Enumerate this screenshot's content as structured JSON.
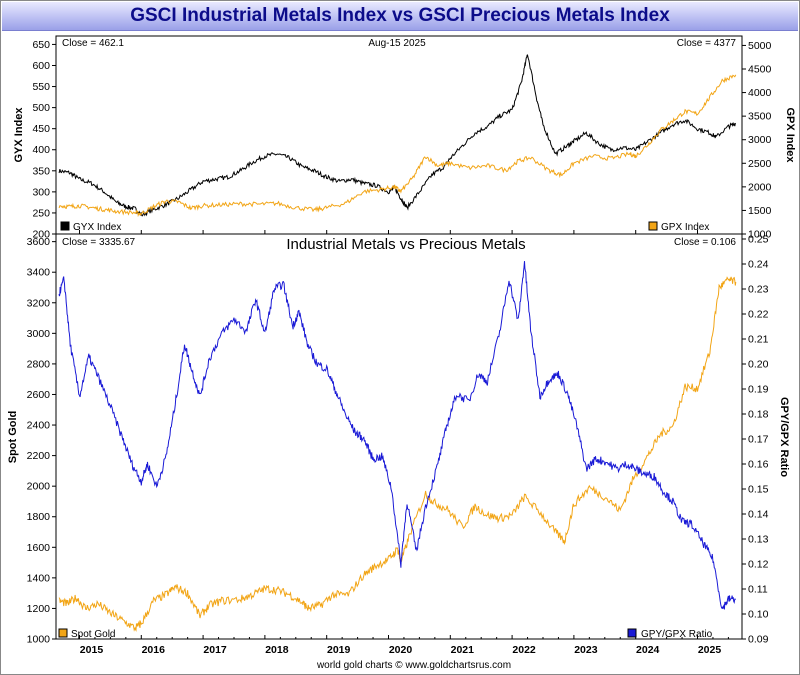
{
  "header": {
    "title": "GSCI Industrial Metals Index vs GSCI Precious Metals Index"
  },
  "footer": {
    "credit": "world gold charts © www.goldchartsrus.com"
  },
  "chart_data": [
    {
      "type": "line",
      "panel": "top",
      "title": "",
      "close_left": "Close = 462.1",
      "date_label": "Aug-15  2025",
      "close_right": "Close = 4377",
      "ylabel_left": "GYX Index",
      "ylabel_right": "GPX Index",
      "ylim_left": [
        200,
        670
      ],
      "ylim_right": [
        1000,
        5200
      ],
      "yticks_left": [
        200,
        250,
        300,
        350,
        400,
        450,
        500,
        550,
        600,
        650
      ],
      "yticks_right": [
        1000,
        1500,
        2000,
        2500,
        3000,
        3500,
        4000,
        4500,
        5000
      ],
      "legend": [
        {
          "label": "GYX Index",
          "color": "#000000",
          "position": "bottom-left"
        },
        {
          "label": "GPX Index",
          "color": "#f2a516",
          "position": "bottom-right"
        }
      ],
      "grid": false,
      "series": [
        {
          "name": "GYX Index",
          "axis": "left",
          "color": "#000000",
          "x": [
            2014.67,
            2014.85,
            2015.0,
            2015.2,
            2015.4,
            2015.6,
            2015.75,
            2015.9,
            2016.0,
            2016.2,
            2016.4,
            2016.6,
            2016.8,
            2017.0,
            2017.2,
            2017.4,
            2017.6,
            2017.8,
            2018.0,
            2018.2,
            2018.4,
            2018.6,
            2018.8,
            2019.0,
            2019.2,
            2019.4,
            2019.6,
            2019.8,
            2020.0,
            2020.1,
            2020.2,
            2020.3,
            2020.5,
            2020.7,
            2020.9,
            2021.0,
            2021.2,
            2021.4,
            2021.6,
            2021.8,
            2022.0,
            2022.15,
            2022.25,
            2022.4,
            2022.5,
            2022.7,
            2022.9,
            2023.0,
            2023.2,
            2023.4,
            2023.6,
            2023.8,
            2024.0,
            2024.2,
            2024.4,
            2024.6,
            2024.8,
            2025.0,
            2025.2,
            2025.3,
            2025.5,
            2025.62
          ],
          "y": [
            350,
            345,
            330,
            320,
            300,
            275,
            265,
            260,
            245,
            258,
            270,
            285,
            305,
            325,
            330,
            335,
            350,
            370,
            385,
            390,
            380,
            360,
            350,
            335,
            325,
            330,
            320,
            315,
            300,
            310,
            285,
            262,
            300,
            340,
            360,
            380,
            410,
            440,
            455,
            480,
            495,
            560,
            628,
            520,
            460,
            390,
            410,
            420,
            440,
            415,
            400,
            405,
            400,
            420,
            440,
            460,
            470,
            450,
            440,
            430,
            455,
            462.1
          ]
        },
        {
          "name": "GPX Index",
          "axis": "right",
          "color": "#f2a516",
          "x": [
            2014.67,
            2014.85,
            2015.0,
            2015.2,
            2015.4,
            2015.6,
            2015.9,
            2016.0,
            2016.2,
            2016.4,
            2016.6,
            2016.8,
            2017.0,
            2017.3,
            2017.6,
            2017.9,
            2018.2,
            2018.5,
            2018.8,
            2019.0,
            2019.3,
            2019.6,
            2019.9,
            2020.1,
            2020.2,
            2020.4,
            2020.6,
            2020.8,
            2021.0,
            2021.3,
            2021.6,
            2021.9,
            2022.1,
            2022.3,
            2022.6,
            2022.8,
            2023.0,
            2023.3,
            2023.6,
            2023.9,
            2024.0,
            2024.2,
            2024.4,
            2024.6,
            2024.8,
            2025.0,
            2025.2,
            2025.4,
            2025.62
          ],
          "y": [
            1600,
            1580,
            1600,
            1560,
            1520,
            1480,
            1450,
            1430,
            1580,
            1700,
            1680,
            1550,
            1600,
            1620,
            1640,
            1630,
            1650,
            1560,
            1510,
            1560,
            1650,
            1900,
            1950,
            2000,
            1900,
            2200,
            2650,
            2450,
            2500,
            2400,
            2450,
            2350,
            2550,
            2620,
            2350,
            2250,
            2500,
            2650,
            2600,
            2700,
            2650,
            2900,
            3200,
            3400,
            3600,
            3550,
            3900,
            4250,
            4377
          ]
        }
      ]
    },
    {
      "type": "line",
      "panel": "bottom",
      "title": "Industrial Metals vs Precious Metals",
      "close_left": "Close = 3335.67",
      "close_right": "Close = 0.106",
      "ylabel_left": "Spot Gold",
      "ylabel_right": "GPY/GPX Ratio",
      "ylim_left": [
        1000,
        3650
      ],
      "ylim_right": [
        0.09,
        0.252
      ],
      "yticks_left": [
        1000,
        1200,
        1400,
        1600,
        1800,
        2000,
        2200,
        2400,
        2600,
        2800,
        3000,
        3200,
        3400,
        3600
      ],
      "yticks_right": [
        0.09,
        0.1,
        0.11,
        0.12,
        0.13,
        0.14,
        0.15,
        0.16,
        0.17,
        0.18,
        0.19,
        0.2,
        0.21,
        0.22,
        0.23,
        0.24,
        0.25
      ],
      "xticks": [
        "2015",
        "2016",
        "2017",
        "2018",
        "2019",
        "2020",
        "2021",
        "2022",
        "2023",
        "2024",
        "2025"
      ],
      "xlim": [
        2014.62,
        2025.72
      ],
      "legend": [
        {
          "label": "Spot Gold",
          "color": "#f2a516",
          "position": "bottom-left"
        },
        {
          "label": "GPY/GPX Ratio",
          "color": "#1a1ad6",
          "position": "bottom-right"
        }
      ],
      "grid": false,
      "series": [
        {
          "name": "Spot Gold",
          "axis": "left",
          "color": "#f2a516",
          "x": [
            2014.67,
            2014.8,
            2014.95,
            2015.1,
            2015.3,
            2015.5,
            2015.7,
            2015.9,
            2016.0,
            2016.2,
            2016.4,
            2016.55,
            2016.75,
            2016.95,
            2017.1,
            2017.3,
            2017.6,
            2017.8,
            2018.0,
            2018.2,
            2018.4,
            2018.6,
            2018.7,
            2018.9,
            2019.1,
            2019.35,
            2019.6,
            2019.8,
            2020.0,
            2020.15,
            2020.2,
            2020.35,
            2020.6,
            2020.75,
            2020.95,
            2021.2,
            2021.4,
            2021.6,
            2021.8,
            2022.0,
            2022.2,
            2022.45,
            2022.7,
            2022.85,
            2023.0,
            2023.25,
            2023.5,
            2023.75,
            2023.95,
            2024.2,
            2024.4,
            2024.6,
            2024.8,
            2025.0,
            2025.2,
            2025.35,
            2025.5,
            2025.62
          ],
          "y": [
            1250,
            1230,
            1270,
            1200,
            1230,
            1170,
            1120,
            1070,
            1100,
            1250,
            1290,
            1340,
            1300,
            1150,
            1220,
            1250,
            1260,
            1290,
            1330,
            1320,
            1290,
            1240,
            1200,
            1220,
            1290,
            1290,
            1420,
            1480,
            1520,
            1590,
            1500,
            1690,
            1950,
            1890,
            1850,
            1730,
            1870,
            1810,
            1790,
            1810,
            1930,
            1830,
            1700,
            1640,
            1880,
            1990,
            1930,
            1840,
            2040,
            2200,
            2340,
            2390,
            2650,
            2640,
            2880,
            3300,
            3350,
            3335.67
          ]
        },
        {
          "name": "GPY/GPX Ratio",
          "axis": "right",
          "color": "#1a1ad6",
          "x": [
            2014.67,
            2014.75,
            2014.85,
            2015.0,
            2015.15,
            2015.3,
            2015.5,
            2015.7,
            2015.85,
            2016.0,
            2016.1,
            2016.25,
            2016.4,
            2016.55,
            2016.7,
            2016.8,
            2016.95,
            2017.1,
            2017.3,
            2017.5,
            2017.7,
            2017.85,
            2018.0,
            2018.15,
            2018.3,
            2018.45,
            2018.55,
            2018.7,
            2018.85,
            2019.0,
            2019.15,
            2019.3,
            2019.45,
            2019.6,
            2019.75,
            2019.9,
            2020.05,
            2020.2,
            2020.3,
            2020.45,
            2020.6,
            2020.8,
            2020.95,
            2021.1,
            2021.3,
            2021.45,
            2021.6,
            2021.8,
            2021.95,
            2022.1,
            2022.2,
            2022.3,
            2022.45,
            2022.6,
            2022.75,
            2022.9,
            2023.05,
            2023.2,
            2023.35,
            2023.5,
            2023.7,
            2023.85,
            2024.0,
            2024.15,
            2024.3,
            2024.45,
            2024.6,
            2024.75,
            2024.9,
            2025.1,
            2025.25,
            2025.4,
            2025.5,
            2025.62
          ],
          "y": [
            0.228,
            0.234,
            0.208,
            0.187,
            0.203,
            0.195,
            0.183,
            0.17,
            0.16,
            0.153,
            0.16,
            0.151,
            0.163,
            0.184,
            0.208,
            0.199,
            0.187,
            0.202,
            0.212,
            0.218,
            0.213,
            0.226,
            0.212,
            0.23,
            0.232,
            0.215,
            0.221,
            0.207,
            0.2,
            0.198,
            0.189,
            0.18,
            0.173,
            0.17,
            0.162,
            0.163,
            0.15,
            0.12,
            0.145,
            0.125,
            0.143,
            0.16,
            0.176,
            0.188,
            0.185,
            0.196,
            0.193,
            0.213,
            0.234,
            0.217,
            0.241,
            0.214,
            0.187,
            0.194,
            0.196,
            0.188,
            0.175,
            0.158,
            0.162,
            0.161,
            0.158,
            0.16,
            0.158,
            0.156,
            0.155,
            0.149,
            0.145,
            0.137,
            0.136,
            0.128,
            0.122,
            0.102,
            0.106,
            0.106
          ]
        }
      ]
    }
  ]
}
